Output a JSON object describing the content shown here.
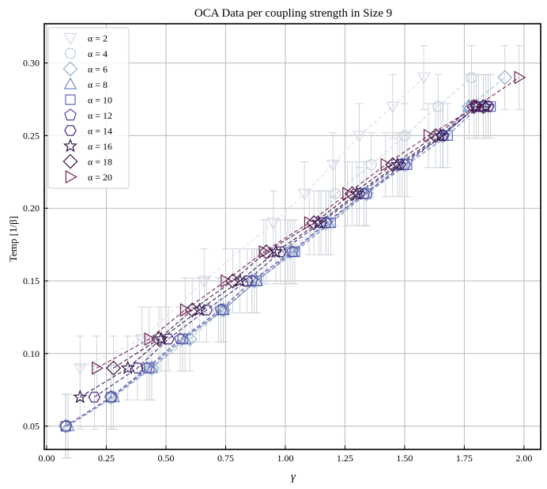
{
  "chart_data": {
    "type": "scatter",
    "title": "OCA Data per coupling strength in Size 9",
    "xlabel": "γ",
    "ylabel": "Temp [1/β]",
    "xlim": [
      -0.01,
      2.07
    ],
    "ylim": [
      0.034,
      0.327
    ],
    "xticks": [
      "0.00",
      "0.25",
      "0.50",
      "0.75",
      "1.00",
      "1.25",
      "1.50",
      "1.75",
      "2.00"
    ],
    "yticks": [
      "0.05",
      "0.10",
      "0.15",
      "0.20",
      "0.25",
      "0.30"
    ],
    "grid": true,
    "legend_position": "top-left",
    "series": [
      {
        "name": "α = 2",
        "marker": "triangle-down",
        "color": "#d8d6e6",
        "line_color": "#e0dfe9",
        "x": [
          0.14,
          0.4,
          0.66,
          0.95,
          1.08,
          1.2,
          1.31,
          1.45,
          1.58
        ],
        "y": [
          0.09,
          0.11,
          0.15,
          0.19,
          0.21,
          0.23,
          0.25,
          0.27,
          0.29
        ]
      },
      {
        "name": "α = 4",
        "marker": "circle",
        "color": "#c0ccdb",
        "line_color": "#cbd5e1",
        "x": [
          0.08,
          0.28,
          0.43,
          0.57,
          0.72,
          0.86,
          1.01,
          1.15,
          1.21,
          1.36,
          1.5,
          1.64,
          1.78
        ],
        "y": [
          0.05,
          0.07,
          0.09,
          0.11,
          0.13,
          0.15,
          0.17,
          0.19,
          0.21,
          0.23,
          0.25,
          0.27,
          0.29
        ]
      },
      {
        "name": "α = 6",
        "marker": "diamond",
        "color": "#8fb0c8",
        "line_color": "#a6bfd1",
        "x": [
          0.08,
          0.27,
          0.44,
          0.6,
          0.74,
          0.87,
          1.02,
          1.17,
          1.34,
          1.5,
          1.66,
          1.77,
          1.92
        ],
        "y": [
          0.05,
          0.07,
          0.09,
          0.11,
          0.13,
          0.15,
          0.17,
          0.19,
          0.21,
          0.23,
          0.25,
          0.27,
          0.29
        ]
      },
      {
        "name": "α = 8",
        "marker": "triangle-up",
        "color": "#6e8ec3",
        "line_color": "#7e96c6",
        "x": [
          0.09,
          0.28,
          0.44,
          0.58,
          0.74,
          0.88,
          1.03,
          1.18,
          1.33,
          1.49,
          1.66,
          1.77,
          1.83
        ],
        "y": [
          0.05,
          0.07,
          0.09,
          0.11,
          0.13,
          0.15,
          0.17,
          0.19,
          0.21,
          0.23,
          0.25,
          0.27,
          0.27
        ]
      },
      {
        "name": "α = 10",
        "marker": "square",
        "color": "#5c68b5",
        "line_color": "#6872b8",
        "x": [
          0.08,
          0.27,
          0.43,
          0.57,
          0.74,
          0.88,
          1.04,
          1.19,
          1.34,
          1.51,
          1.68,
          1.81,
          1.86
        ],
        "y": [
          0.05,
          0.07,
          0.09,
          0.11,
          0.13,
          0.15,
          0.17,
          0.19,
          0.21,
          0.23,
          0.25,
          0.27,
          0.27
        ]
      },
      {
        "name": "α = 12",
        "marker": "pentagon",
        "color": "#56449b",
        "line_color": "#5e4ca0",
        "x": [
          0.08,
          0.27,
          0.42,
          0.56,
          0.73,
          0.86,
          1.03,
          1.17,
          1.33,
          1.5,
          1.66,
          1.8,
          1.85
        ],
        "y": [
          0.05,
          0.07,
          0.09,
          0.11,
          0.13,
          0.15,
          0.17,
          0.19,
          0.21,
          0.23,
          0.25,
          0.27,
          0.27
        ]
      },
      {
        "name": "α = 14",
        "marker": "hexagon",
        "color": "#3f2277",
        "line_color": "#462a7c",
        "x": [
          0.2,
          0.38,
          0.51,
          0.67,
          0.84,
          0.98,
          1.15,
          1.31,
          1.48,
          1.66,
          1.8,
          1.85
        ],
        "y": [
          0.07,
          0.09,
          0.11,
          0.13,
          0.15,
          0.17,
          0.19,
          0.21,
          0.23,
          0.25,
          0.27,
          0.27
        ]
      },
      {
        "name": "α = 16",
        "marker": "star",
        "color": "#2d1548",
        "line_color": "#33184e",
        "x": [
          0.14,
          0.34,
          0.48,
          0.64,
          0.81,
          0.96,
          1.14,
          1.3,
          1.47,
          1.65,
          1.8,
          1.84
        ],
        "y": [
          0.07,
          0.09,
          0.11,
          0.13,
          0.15,
          0.17,
          0.19,
          0.21,
          0.23,
          0.25,
          0.27,
          0.27
        ]
      },
      {
        "name": "α = 18",
        "marker": "diamond",
        "color": "#3f0f40",
        "line_color": "#4b1448",
        "x": [
          0.28,
          0.47,
          0.61,
          0.78,
          0.92,
          1.12,
          1.28,
          1.45,
          1.63,
          1.79,
          1.83
        ],
        "y": [
          0.09,
          0.11,
          0.13,
          0.15,
          0.17,
          0.19,
          0.21,
          0.23,
          0.25,
          0.27,
          0.27
        ]
      },
      {
        "name": "α = 20",
        "marker": "triangle-right",
        "color": "#6e1f4f",
        "line_color": "#7a2555",
        "x": [
          0.21,
          0.43,
          0.58,
          0.75,
          0.91,
          1.1,
          1.26,
          1.42,
          1.6,
          1.8,
          1.98
        ],
        "y": [
          0.09,
          0.11,
          0.13,
          0.15,
          0.17,
          0.19,
          0.21,
          0.23,
          0.25,
          0.27,
          0.29
        ]
      }
    ]
  }
}
